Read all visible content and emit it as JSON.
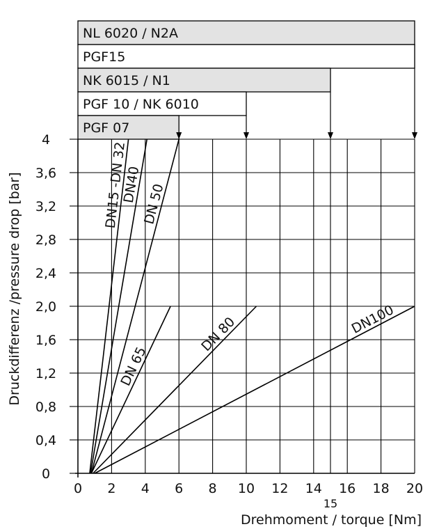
{
  "chart_data": {
    "type": "line",
    "xlabel": "Drehmoment / torque [Nm]",
    "ylabel": "Druckdifferenz /pressure  drop [bar]",
    "xlim": [
      0,
      20
    ],
    "ylim": [
      0,
      4
    ],
    "x_ticks": [
      "0",
      "2",
      "4",
      "6",
      "8",
      "10",
      "12",
      "14",
      "16",
      "18",
      "20"
    ],
    "x_extra_tick": {
      "value": 15,
      "label": "15"
    },
    "y_ticks": [
      "0",
      "0,4",
      "0,8",
      "1,2",
      "1,6",
      "2,0",
      "2,4",
      "2,8",
      "3,2",
      "3,6",
      "4"
    ],
    "y_tick_values": [
      0,
      0.4,
      0.8,
      1.2,
      1.6,
      2.0,
      2.4,
      2.8,
      3.2,
      3.6,
      4
    ],
    "grid": true,
    "series": [
      {
        "name": "DN15 -DN 32",
        "x": [
          0.7,
          3.0
        ],
        "y": [
          0,
          4
        ]
      },
      {
        "name": "DN40",
        "x": [
          0.75,
          4.1
        ],
        "y": [
          0,
          4
        ]
      },
      {
        "name": "DN 50",
        "x": [
          0.8,
          6.0
        ],
        "y": [
          0,
          4
        ]
      },
      {
        "name": "DN 65",
        "x": [
          0.8,
          5.5
        ],
        "y": [
          0,
          2
        ]
      },
      {
        "name": "DN  80",
        "x": [
          0.9,
          10.6
        ],
        "y": [
          0,
          2
        ]
      },
      {
        "name": "DN100",
        "x": [
          1.0,
          20.0
        ],
        "y": [
          0,
          2
        ]
      }
    ],
    "actuators": [
      {
        "label": "NL 6020 / N2A",
        "max_torque": 20,
        "shaded": true
      },
      {
        "label": "PGF15",
        "max_torque": 20,
        "shaded": false
      },
      {
        "label": "NK 6015 / N1",
        "max_torque": 15,
        "shaded": true
      },
      {
        "label": "PGF 10 / NK 6010",
        "max_torque": 10,
        "shaded": false
      },
      {
        "label": "PGF  07",
        "max_torque": 6,
        "shaded": true
      }
    ]
  }
}
